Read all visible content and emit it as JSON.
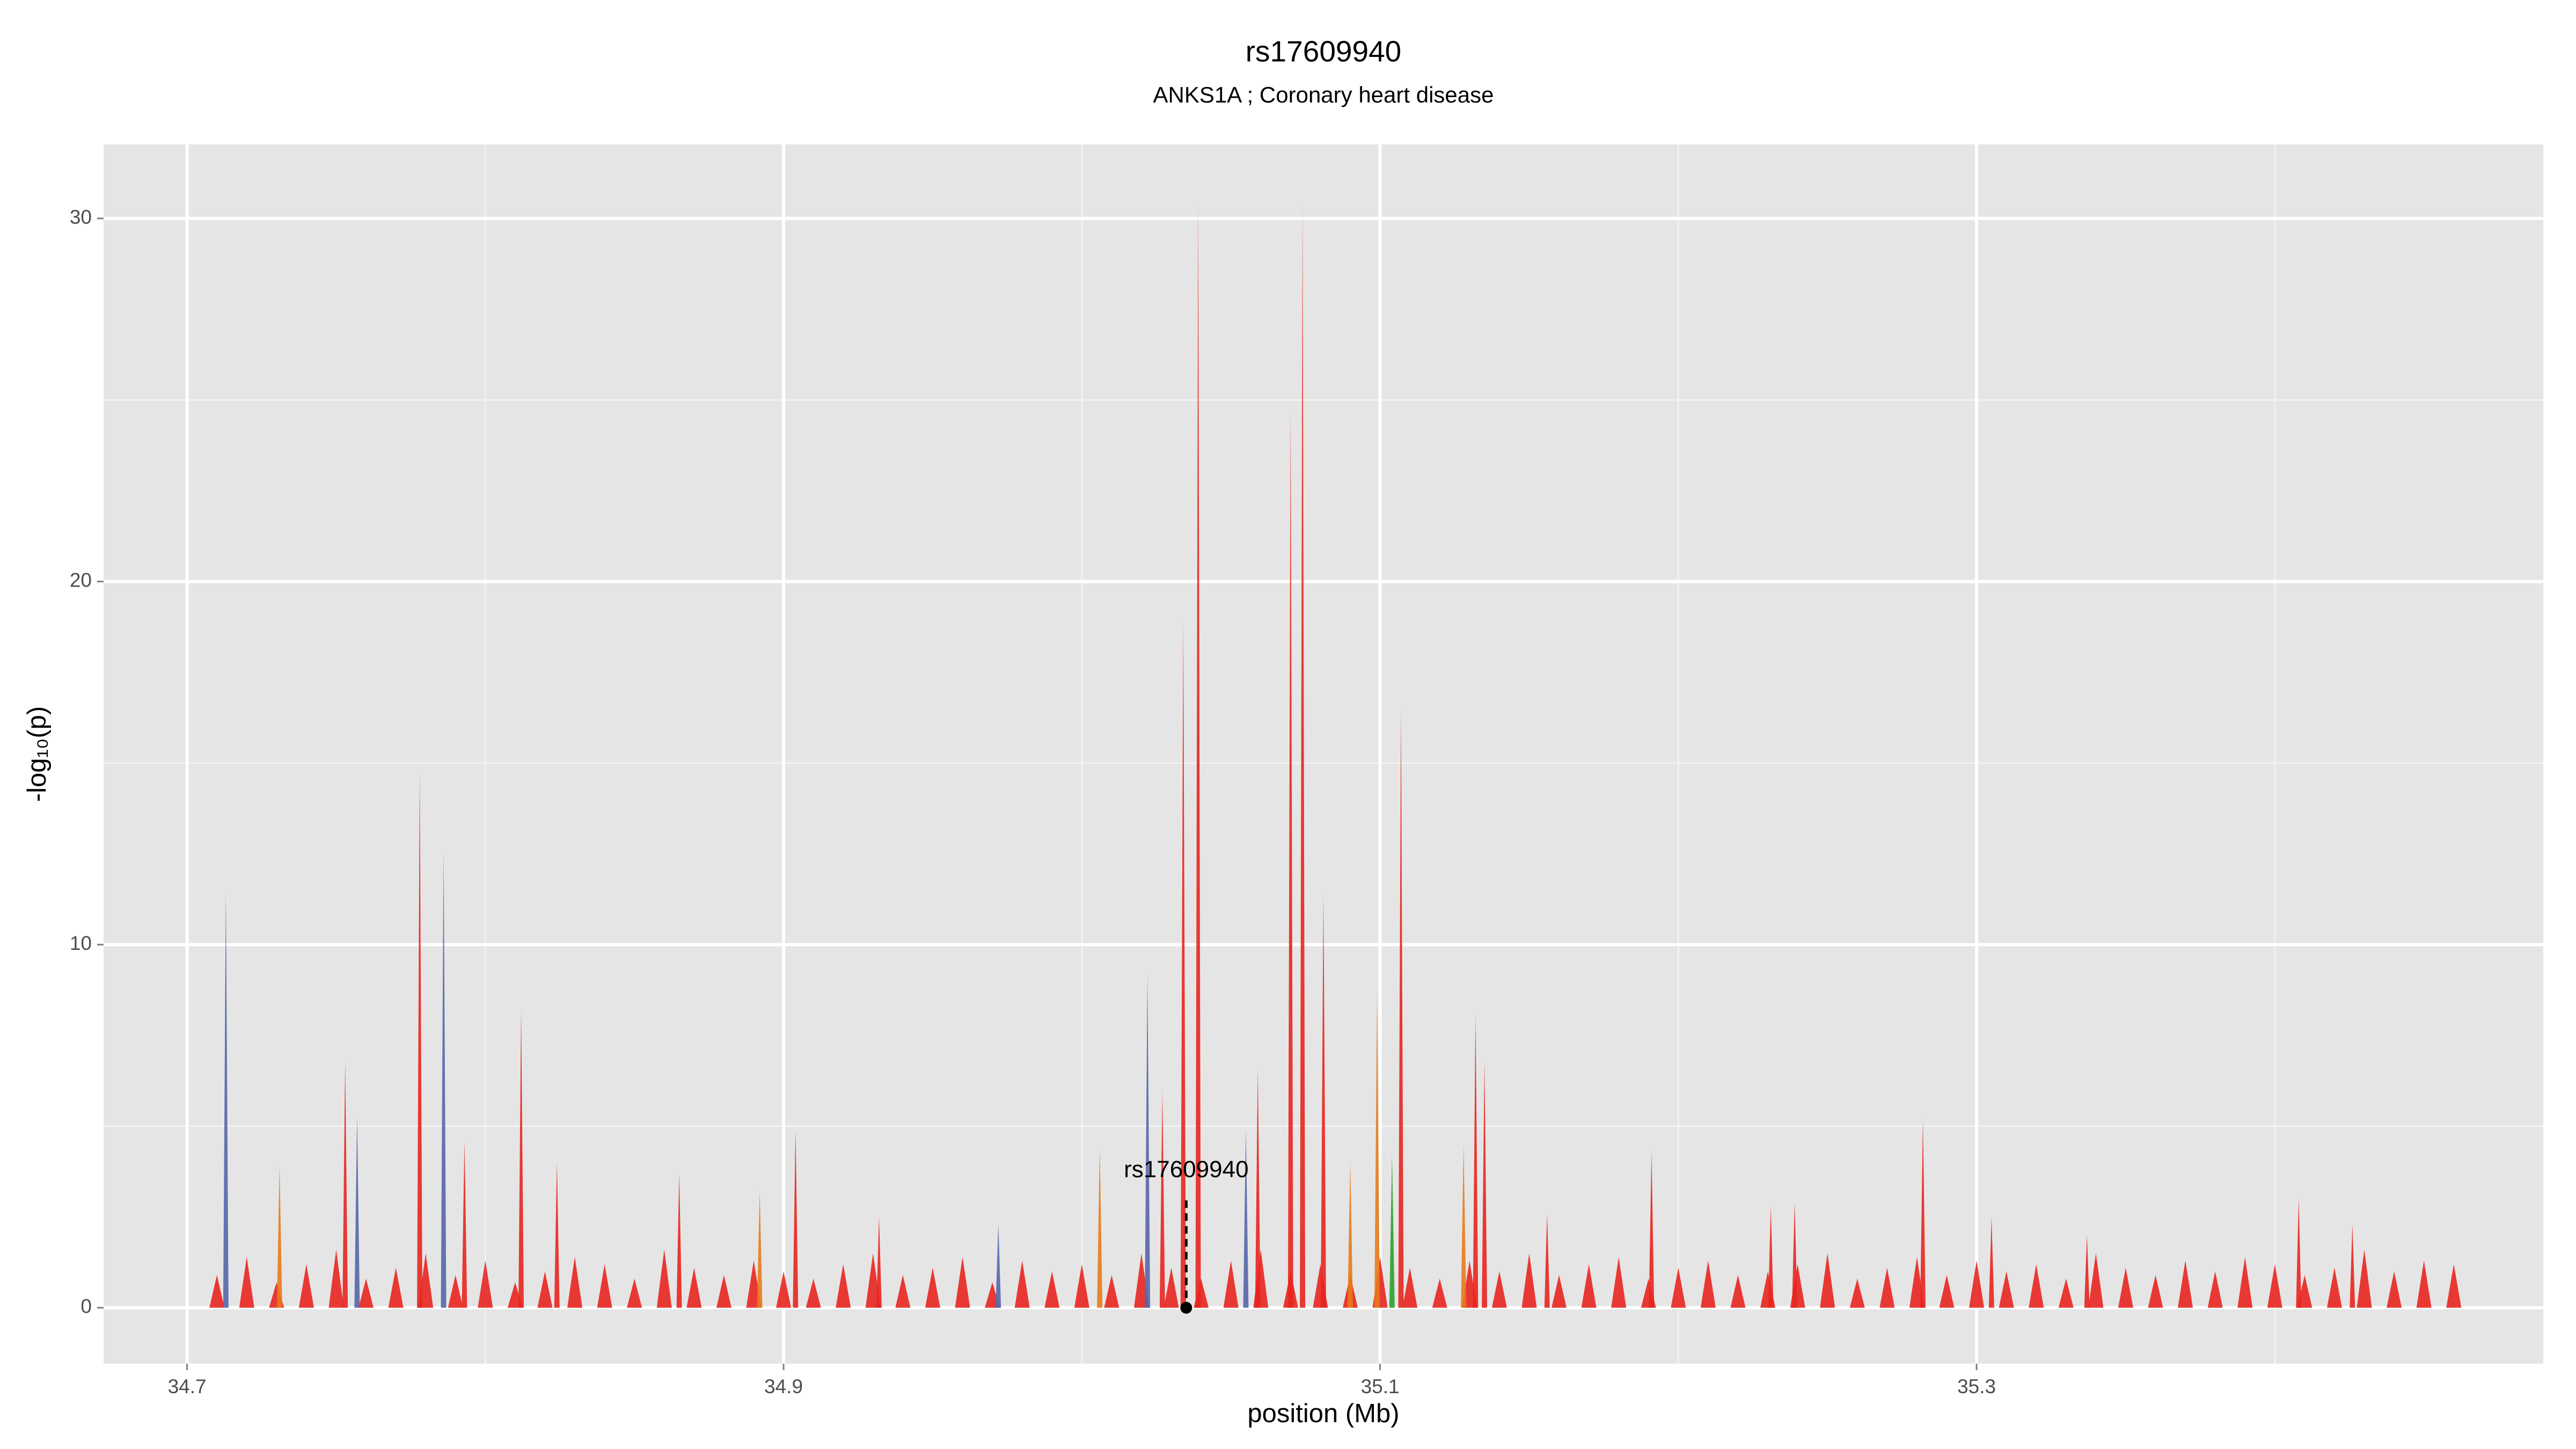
{
  "chart_data": {
    "type": "spike",
    "title": "rs17609940",
    "subtitle": "ANKS1A ; Coronary heart disease",
    "x_label": "position (Mb)",
    "y_label": "-log₁₀(p)",
    "xlim": [
      34.672,
      35.49
    ],
    "ylim": [
      -1.54,
      32.04
    ],
    "xticks": [
      34.7,
      34.9,
      35.1,
      35.3
    ],
    "yticks": [
      0,
      10,
      20,
      30
    ],
    "x_minor_ticks": [
      34.8,
      35.0,
      35.2,
      35.4
    ],
    "y_minor_ticks": [
      5,
      15,
      25
    ],
    "grid": true,
    "series": [
      {
        "color": "#e8251f",
        "x": [
          34.71,
          34.72,
          34.73,
          34.74,
          34.75,
          34.76,
          34.77,
          34.78,
          34.79,
          34.8,
          34.81,
          34.82,
          34.83,
          34.84,
          34.85,
          34.86,
          34.87,
          34.88,
          34.89,
          34.9,
          34.91,
          34.92,
          34.93,
          34.94,
          34.95,
          34.96,
          34.97,
          34.98,
          34.99,
          35.0,
          35.01,
          35.02,
          35.03,
          35.04,
          35.05,
          35.06,
          35.07,
          35.08,
          35.09,
          35.1,
          35.11,
          35.12,
          35.13,
          35.14,
          35.15,
          35.16,
          35.17,
          35.18,
          35.19,
          35.2,
          35.21,
          35.22,
          35.23,
          35.24,
          35.25,
          35.26,
          35.27,
          35.28,
          35.29,
          35.3,
          35.31,
          35.32,
          35.33,
          35.34,
          35.35,
          35.36,
          35.37,
          35.38,
          35.39,
          35.4,
          35.41,
          35.42,
          35.43,
          35.44,
          35.45,
          35.46
        ],
        "values": [
          0.9,
          1.4,
          0.7,
          1.2,
          1.6,
          0.8,
          1.1,
          1.5,
          0.9,
          1.3,
          0.7,
          1.0,
          1.4,
          1.2,
          0.8,
          1.6,
          1.1,
          0.9,
          1.3,
          1.0,
          0.8,
          1.2,
          1.5,
          0.9,
          1.1,
          1.4,
          0.7,
          1.3,
          1.0,
          1.2,
          0.9,
          1.5,
          1.1,
          0.8,
          1.3,
          1.6,
          1.0,
          1.2,
          0.9,
          1.4,
          1.1,
          0.8,
          1.3,
          1.0,
          1.5,
          0.9,
          1.2,
          1.4,
          0.8,
          1.1,
          1.3,
          0.9,
          1.0,
          1.2,
          1.5,
          0.8,
          1.1,
          1.4,
          0.9,
          1.3,
          1.0,
          1.2,
          0.8,
          1.5,
          1.1,
          0.9,
          1.3,
          1.0,
          1.4,
          1.2,
          0.9,
          1.1,
          1.6,
          1.0,
          1.3,
          1.2
        ]
      },
      {
        "color": "#e8251f",
        "x": [
          35.039,
          35.074,
          35.07,
          35.034,
          35.107,
          35.081,
          34.778,
          34.812,
          35.132,
          35.135,
          34.753,
          35.282,
          35.191,
          34.904,
          35.059,
          35.027,
          35.231,
          35.239,
          35.408,
          35.426,
          34.793,
          34.824,
          34.865,
          34.932,
          35.156,
          35.305,
          35.337
        ],
        "values": [
          30.5,
          30.4,
          24.8,
          18.9,
          16.5,
          11.4,
          14.8,
          8.2,
          8.1,
          6.8,
          6.8,
          5.2,
          4.3,
          4.9,
          6.6,
          6.0,
          2.8,
          2.9,
          3.0,
          2.3,
          4.6,
          4.0,
          3.7,
          2.5,
          2.6,
          2.5,
          2.0
        ]
      },
      {
        "color": "#e87a1a",
        "x": [
          34.731,
          35.006,
          35.099,
          35.128,
          34.892,
          35.09
        ],
        "values": [
          3.9,
          4.4,
          8.7,
          4.5,
          3.2,
          4.0
        ]
      },
      {
        "color": "#5566aa",
        "x": [
          34.713,
          34.786,
          35.022,
          34.757,
          35.055,
          34.972
        ],
        "values": [
          11.5,
          12.6,
          9.2,
          5.3,
          4.9,
          2.3
        ]
      },
      {
        "color": "#2ca02c",
        "x": [
          35.104
        ],
        "values": [
          4.2
        ]
      }
    ],
    "highlight": {
      "label": "rs17609940",
      "x": 35.035,
      "value": 0
    }
  }
}
